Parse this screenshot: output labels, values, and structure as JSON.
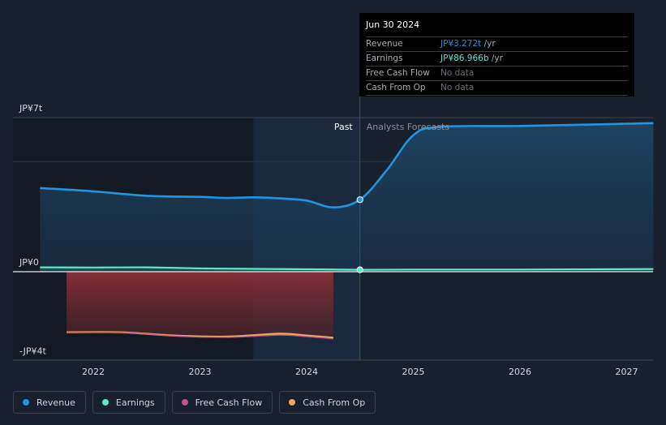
{
  "chart_data": {
    "type": "line",
    "x_ticks": [
      "2022",
      "2023",
      "2024",
      "2025",
      "2026",
      "2027"
    ],
    "y_ticks": [
      "JP¥7t",
      "JP¥0",
      "-JP¥4t"
    ],
    "ylim": [
      -4,
      7
    ],
    "regions": {
      "past_label": "Past",
      "forecast_label": "Analysts Forecasts"
    },
    "series": [
      {
        "name": "Revenue",
        "color": "#2394df",
        "points": [
          [
            2021.5,
            3.8
          ],
          [
            2022.0,
            3.65
          ],
          [
            2022.5,
            3.45
          ],
          [
            2023.0,
            3.4
          ],
          [
            2023.25,
            3.35
          ],
          [
            2023.5,
            3.38
          ],
          [
            2023.75,
            3.33
          ],
          [
            2024.0,
            3.23
          ],
          [
            2024.25,
            2.92
          ],
          [
            2024.5,
            3.272
          ],
          [
            2024.75,
            4.6
          ],
          [
            2025.0,
            6.2
          ],
          [
            2025.25,
            6.58
          ],
          [
            2026.0,
            6.62
          ],
          [
            2027.0,
            6.72
          ],
          [
            2027.25,
            6.75
          ]
        ]
      },
      {
        "name": "Earnings",
        "color": "#5ee8c8",
        "points": [
          [
            2021.5,
            0.2
          ],
          [
            2022.0,
            0.19
          ],
          [
            2022.5,
            0.2
          ],
          [
            2023.0,
            0.15
          ],
          [
            2023.5,
            0.13
          ],
          [
            2024.0,
            0.11
          ],
          [
            2024.5,
            0.087
          ],
          [
            2025.0,
            0.1
          ],
          [
            2026.0,
            0.1
          ],
          [
            2027.25,
            0.12
          ]
        ]
      },
      {
        "name": "Free Cash Flow",
        "color": "#c0548d",
        "points": [
          [
            2021.75,
            -2.75
          ],
          [
            2022.25,
            -2.75
          ],
          [
            2022.75,
            -2.92
          ],
          [
            2023.25,
            -2.98
          ],
          [
            2023.75,
            -2.88
          ],
          [
            2024.0,
            -2.95
          ],
          [
            2024.25,
            -3.05
          ]
        ]
      },
      {
        "name": "Cash From Op",
        "color": "#f1a75f",
        "points": [
          [
            2021.75,
            -2.75
          ],
          [
            2022.25,
            -2.75
          ],
          [
            2022.75,
            -2.9
          ],
          [
            2023.25,
            -2.95
          ],
          [
            2023.75,
            -2.82
          ],
          [
            2024.0,
            -2.9
          ],
          [
            2024.25,
            -3.0
          ]
        ]
      }
    ],
    "highlight": {
      "x": 2024.5
    }
  },
  "tooltip": {
    "date": "Jun 30 2024",
    "rows": [
      {
        "label": "Revenue",
        "value": "JP¥3.272t",
        "unit": " /yr"
      },
      {
        "label": "Earnings",
        "value": "JP¥86.966b",
        "unit": " /yr"
      },
      {
        "label": "Free Cash Flow",
        "value": "No data"
      },
      {
        "label": "Cash From Op",
        "value": "No data"
      }
    ]
  },
  "legend": [
    {
      "label": "Revenue",
      "color": "#2394df"
    },
    {
      "label": "Earnings",
      "color": "#5ee8c8"
    },
    {
      "label": "Free Cash Flow",
      "color": "#c0548d"
    },
    {
      "label": "Cash From Op",
      "color": "#f1a75f"
    }
  ]
}
